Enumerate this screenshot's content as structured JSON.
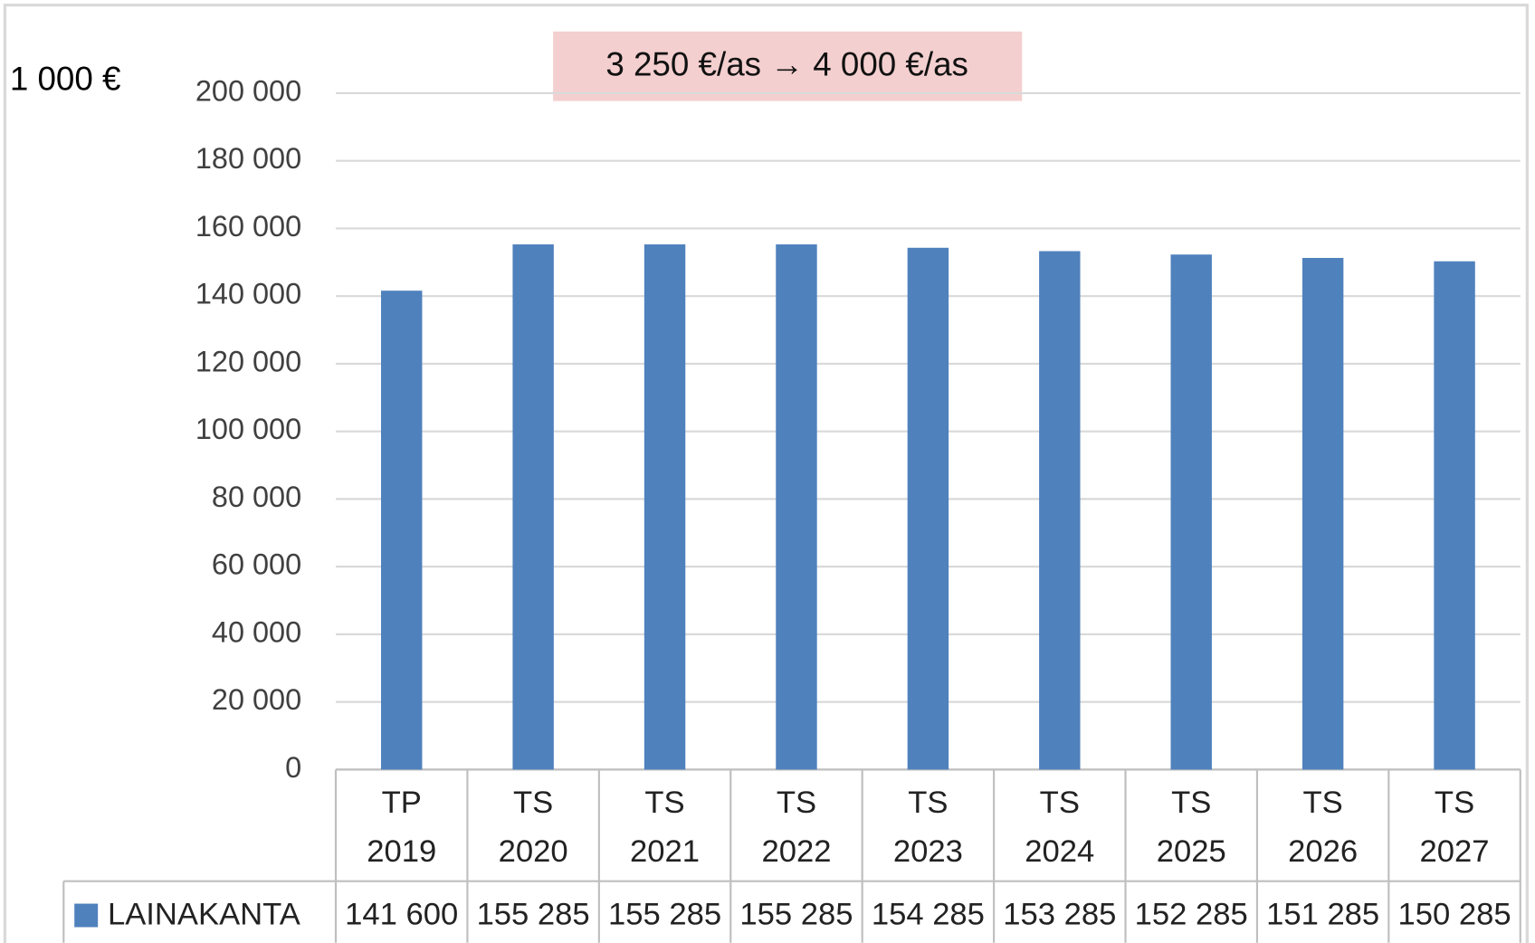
{
  "chart_data": {
    "type": "bar",
    "unit_label": "1 000 €",
    "annotation": "3 250 €/as → 4 000 €/as",
    "categories": [
      "TP\n2019",
      "TS\n2020",
      "TS\n2021",
      "TS\n2022",
      "TS\n2023",
      "TS\n2024",
      "TS\n2025",
      "TS\n2026",
      "TS\n2027"
    ],
    "series": [
      {
        "name": "LAINAKANTA",
        "color": "#4f81bd",
        "values": [
          141600,
          155285,
          155285,
          155285,
          154285,
          153285,
          152285,
          151285,
          150285
        ],
        "value_labels": [
          "141 600",
          "155 285",
          "155 285",
          "155 285",
          "154 285",
          "153 285",
          "152 285",
          "151 285",
          "150 285"
        ]
      }
    ],
    "ylim": [
      0,
      200000
    ],
    "yticks": [
      0,
      {
        "value": 20000,
        "label": "20 000"
      },
      {
        "value": 40000,
        "label": "40 000"
      },
      {
        "value": 60000,
        "label": "60 000"
      },
      {
        "value": 80000,
        "label": "80 000"
      },
      {
        "value": 100000,
        "label": "100 000"
      },
      {
        "value": 120000,
        "label": "120 000"
      },
      {
        "value": 140000,
        "label": "140 000"
      },
      {
        "value": 160000,
        "label": "160 000"
      },
      {
        "value": 180000,
        "label": "180 000"
      },
      {
        "value": 200000,
        "label": "200 000"
      }
    ],
    "grid": true
  }
}
